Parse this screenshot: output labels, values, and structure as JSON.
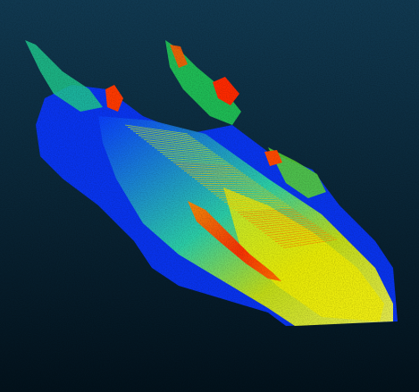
{
  "scene": {
    "kind": "lidar-point-cloud-view",
    "background": {
      "top": "#113a52",
      "bottom": "#03121c"
    },
    "colormap": [
      "#0a1cff",
      "#0a52ff",
      "#00a8ff",
      "#12e6c8",
      "#35e64a",
      "#b8f000",
      "#ffff00",
      "#ff9a00",
      "#ff2a00"
    ]
  }
}
